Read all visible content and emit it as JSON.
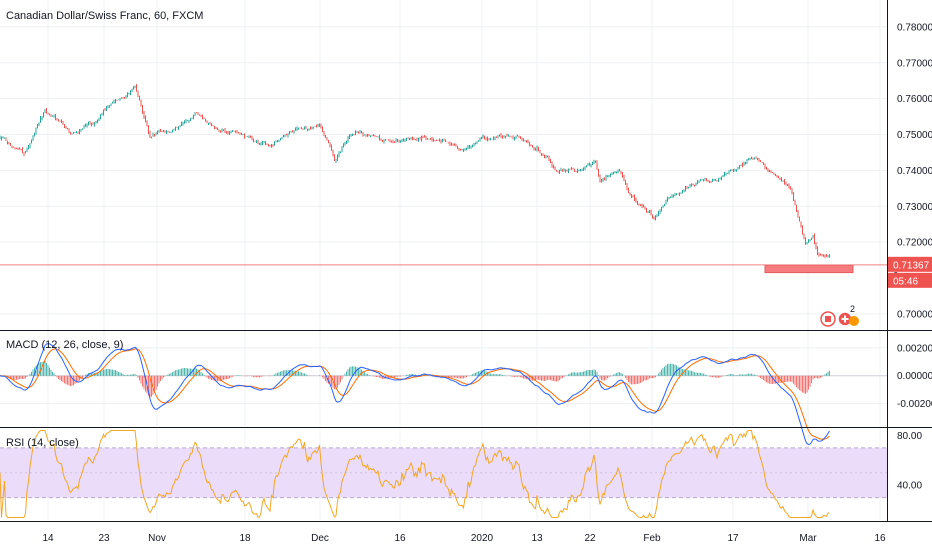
{
  "main": {
    "title": "Canadian Dollar/Swiss Franc, 60, FXCM",
    "price_ticks": [
      "0.78000",
      "0.77000",
      "0.76000",
      "0.75000",
      "0.74000",
      "0.73000",
      "0.72000",
      "0.70000"
    ],
    "price_tick_values": [
      0.78,
      0.77,
      0.76,
      0.75,
      0.74,
      0.73,
      0.72,
      0.7
    ],
    "y_range": [
      0.6955,
      0.7875
    ],
    "current_price": "0.71367",
    "current_price_value": 0.71367,
    "countdown": "05:46",
    "hidden_tick": "0",
    "events_count": "2",
    "colors": {
      "up": "#26a69a",
      "down": "#ef5350",
      "zone": "#f77c80",
      "price_line": "#f08080"
    },
    "keypoints": [
      [
        0,
        0.749
      ],
      [
        25,
        0.744
      ],
      [
        45,
        0.757
      ],
      [
        70,
        0.75
      ],
      [
        95,
        0.754
      ],
      [
        115,
        0.76
      ],
      [
        135,
        0.763
      ],
      [
        150,
        0.75
      ],
      [
        170,
        0.751
      ],
      [
        195,
        0.756
      ],
      [
        215,
        0.752
      ],
      [
        245,
        0.749
      ],
      [
        270,
        0.747
      ],
      [
        290,
        0.751
      ],
      [
        320,
        0.753
      ],
      [
        335,
        0.743
      ],
      [
        350,
        0.751
      ],
      [
        375,
        0.749
      ],
      [
        400,
        0.748
      ],
      [
        430,
        0.749
      ],
      [
        460,
        0.746
      ],
      [
        480,
        0.749
      ],
      [
        510,
        0.749
      ],
      [
        545,
        0.745
      ],
      [
        555,
        0.741
      ],
      [
        575,
        0.74
      ],
      [
        595,
        0.743
      ],
      [
        600,
        0.737
      ],
      [
        620,
        0.74
      ],
      [
        630,
        0.733
      ],
      [
        655,
        0.727
      ],
      [
        670,
        0.733
      ],
      [
        690,
        0.736
      ],
      [
        720,
        0.738
      ],
      [
        750,
        0.744
      ],
      [
        770,
        0.74
      ],
      [
        790,
        0.735
      ],
      [
        797,
        0.728
      ],
      [
        806,
        0.719
      ],
      [
        813,
        0.721
      ],
      [
        818,
        0.716
      ],
      [
        830,
        0.716
      ]
    ]
  },
  "zone": {
    "low": 0.7115,
    "high": 0.7135,
    "time_start": 765,
    "time_end": 853
  },
  "macd": {
    "label": "MACD (12, 26, close, 9)",
    "ticks": [
      "0.00200",
      "0.00000",
      "-0.00200"
    ],
    "tick_values": [
      0.002,
      0.0,
      -0.002
    ],
    "y_range": [
      -0.0036,
      0.0032
    ]
  },
  "rsi": {
    "label": "RSI (14, close)",
    "ticks": [
      "80.00",
      "40.00"
    ],
    "tick_values": [
      80,
      40
    ],
    "y_range": [
      12,
      86
    ],
    "band": [
      30,
      70
    ],
    "colors": {
      "line": "#f5a623",
      "band": "#ebdcf9"
    }
  },
  "x_axis": {
    "ticks": [
      {
        "label": "14",
        "t": 48
      },
      {
        "label": "23",
        "t": 104
      },
      {
        "label": "Nov",
        "t": 157
      },
      {
        "label": "18",
        "t": 245
      },
      {
        "label": "Dec",
        "t": 320
      },
      {
        "label": "16",
        "t": 400
      },
      {
        "label": "2020",
        "t": 482
      },
      {
        "label": "13",
        "t": 537
      },
      {
        "label": "22",
        "t": 590
      },
      {
        "label": "Feb",
        "t": 652
      },
      {
        "label": "17",
        "t": 733
      },
      {
        "label": "Mar",
        "t": 808
      },
      {
        "label": "16",
        "t": 880
      }
    ]
  }
}
